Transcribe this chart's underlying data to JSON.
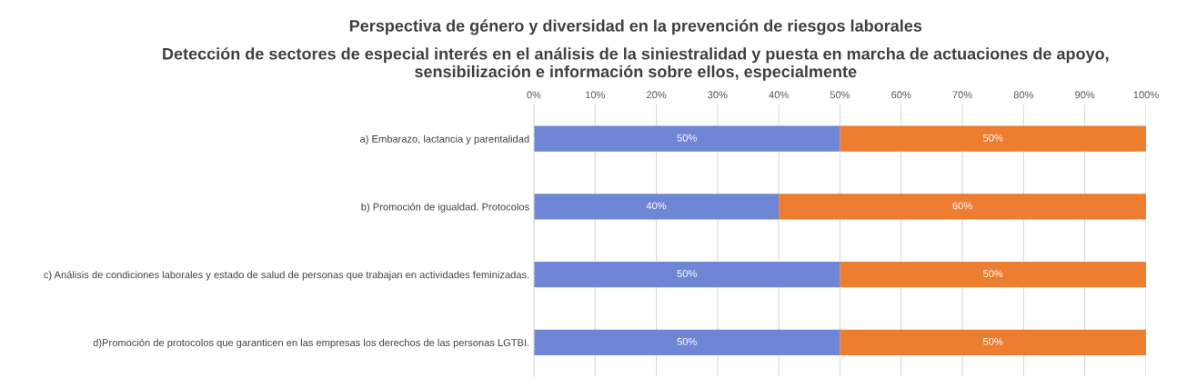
{
  "chart_data": {
    "type": "bar",
    "orientation": "horizontal",
    "stacked": true,
    "title": "Perspectiva de género y diversidad en la prevención de riesgos laborales",
    "subtitle": "Detección de sectores de especial interés en el análisis de la siniestralidad y puesta en marcha de actuaciones de apoyo, sensibilización e información sobre ellos, especialmente",
    "categories": [
      "a) Embarazo, lactancia y parentalidad",
      "b) Promoción de igualdad. Protocolos",
      "c) Análisis de condiciones laborales y estado de salud de personas que trabajan en actividades feminizadas.",
      "d)Promoción de protocolos que garanticen en las empresas los derechos de las personas LGTBI."
    ],
    "series": [
      {
        "color": "#6f86d6",
        "values": [
          50,
          40,
          50,
          50
        ],
        "value_labels": [
          "50%",
          "40%",
          "50%",
          "50%"
        ]
      },
      {
        "color": "#ed7d31",
        "values": [
          50,
          60,
          50,
          50
        ],
        "value_labels": [
          "50%",
          "60%",
          "50%",
          "50%"
        ]
      }
    ],
    "xlim": [
      0,
      100
    ],
    "xticks": [
      {
        "value": 0,
        "label": "0%"
      },
      {
        "value": 10,
        "label": "10%"
      },
      {
        "value": 20,
        "label": "20%"
      },
      {
        "value": 30,
        "label": "30%"
      },
      {
        "value": 40,
        "label": "40%"
      },
      {
        "value": 50,
        "label": "50%"
      },
      {
        "value": 60,
        "label": "60%"
      },
      {
        "value": 70,
        "label": "70%"
      },
      {
        "value": 80,
        "label": "80%"
      },
      {
        "value": 90,
        "label": "90%"
      },
      {
        "value": 100,
        "label": "100%"
      }
    ],
    "grid": "x",
    "legend": false
  }
}
